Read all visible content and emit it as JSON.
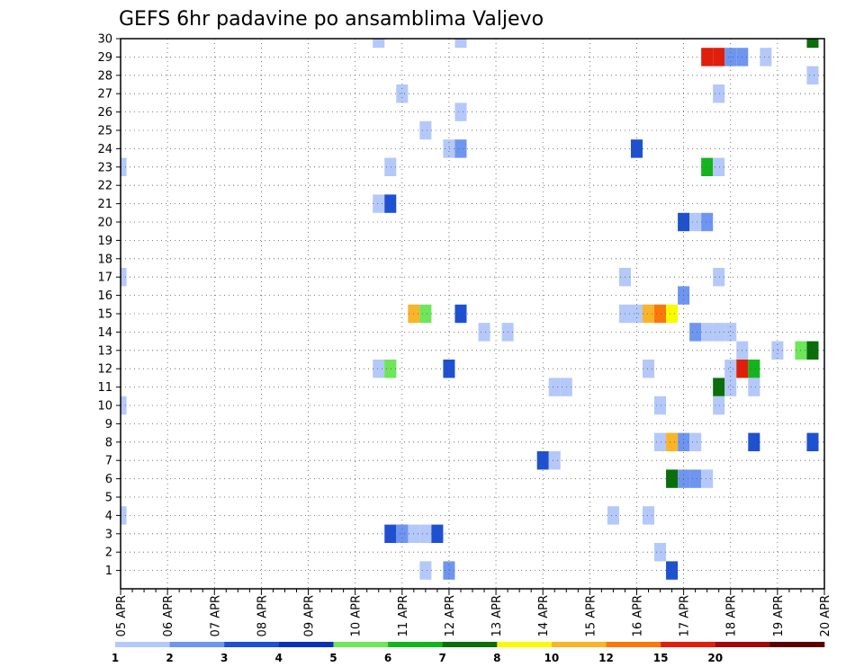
{
  "chart_data": {
    "type": "heatmap",
    "title": "GEFS 6hr padavine po ansamblima Valjevo",
    "xlabel": "",
    "ylabel": "",
    "x_tick_labels": [
      "05 APR",
      "06 APR",
      "07 APR",
      "08 APR",
      "09 APR",
      "10 APR",
      "11 APR",
      "12 APR",
      "13 APR",
      "14 APR",
      "15 APR",
      "16 APR",
      "17 APR",
      "18 APR",
      "19 APR",
      "20 APR"
    ],
    "y_tick_labels": [
      "1",
      "2",
      "3",
      "4",
      "5",
      "6",
      "7",
      "8",
      "9",
      "10",
      "11",
      "12",
      "13",
      "14",
      "15",
      "16",
      "17",
      "18",
      "19",
      "20",
      "21",
      "22",
      "23",
      "24",
      "25",
      "26",
      "27",
      "28",
      "29",
      "30"
    ],
    "x_unit": "6-hour step from 05 APR 00Z",
    "ylim": [
      0,
      30
    ],
    "colorbar": {
      "labels": [
        "1",
        "2",
        "3",
        "4",
        "5",
        "6",
        "7",
        "8",
        "10",
        "12",
        "15",
        "20"
      ],
      "colors": [
        "#b4c8fa",
        "#6e96f0",
        "#1e50d2",
        "#0a32b4",
        "#6ee65a",
        "#14b41e",
        "#0a6e0a",
        "#fafa00",
        "#fab428",
        "#fa780a",
        "#e11e0a",
        "#a00a0a",
        "#5a0000"
      ]
    },
    "grid": true,
    "cells": [
      {
        "x": 22,
        "y": 30,
        "c": 0
      },
      {
        "x": 29,
        "y": 30,
        "c": 0
      },
      {
        "x": 59,
        "y": 30,
        "c": 6
      },
      {
        "x": 50,
        "y": 29,
        "c": 10
      },
      {
        "x": 51,
        "y": 29,
        "c": 10
      },
      {
        "x": 52,
        "y": 29,
        "c": 1
      },
      {
        "x": 53,
        "y": 29,
        "c": 1
      },
      {
        "x": 55,
        "y": 29,
        "c": 0
      },
      {
        "x": 59,
        "y": 28,
        "c": 0
      },
      {
        "x": 24,
        "y": 27,
        "c": 0
      },
      {
        "x": 51,
        "y": 27,
        "c": 0
      },
      {
        "x": 29,
        "y": 26,
        "c": 0
      },
      {
        "x": 26,
        "y": 25,
        "c": 0
      },
      {
        "x": 28,
        "y": 24,
        "c": 0
      },
      {
        "x": 29,
        "y": 24,
        "c": 1
      },
      {
        "x": 44,
        "y": 24,
        "c": 2
      },
      {
        "x": 0,
        "y": 23,
        "c": 0
      },
      {
        "x": 23,
        "y": 23,
        "c": 0
      },
      {
        "x": 50,
        "y": 23,
        "c": 5
      },
      {
        "x": 51,
        "y": 23,
        "c": 0
      },
      {
        "x": 22,
        "y": 21,
        "c": 0
      },
      {
        "x": 23,
        "y": 21,
        "c": 2
      },
      {
        "x": 48,
        "y": 20,
        "c": 2
      },
      {
        "x": 49,
        "y": 20,
        "c": 0
      },
      {
        "x": 50,
        "y": 20,
        "c": 1
      },
      {
        "x": 0,
        "y": 17,
        "c": 0
      },
      {
        "x": 43,
        "y": 17,
        "c": 0
      },
      {
        "x": 51,
        "y": 17,
        "c": 0
      },
      {
        "x": 48,
        "y": 16,
        "c": 1
      },
      {
        "x": 25,
        "y": 15,
        "c": 8
      },
      {
        "x": 26,
        "y": 15,
        "c": 4
      },
      {
        "x": 29,
        "y": 15,
        "c": 2
      },
      {
        "x": 43,
        "y": 15,
        "c": 0
      },
      {
        "x": 44,
        "y": 15,
        "c": 0
      },
      {
        "x": 45,
        "y": 15,
        "c": 8
      },
      {
        "x": 46,
        "y": 15,
        "c": 9
      },
      {
        "x": 47,
        "y": 15,
        "c": 7
      },
      {
        "x": 31,
        "y": 14,
        "c": 0
      },
      {
        "x": 49,
        "y": 14,
        "c": 1
      },
      {
        "x": 50,
        "y": 14,
        "c": 0
      },
      {
        "x": 51,
        "y": 14,
        "c": 0
      },
      {
        "x": 52,
        "y": 14,
        "c": 0
      },
      {
        "x": 33,
        "y": 14,
        "c": 0
      },
      {
        "x": 53,
        "y": 13,
        "c": 0
      },
      {
        "x": 56,
        "y": 13,
        "c": 0
      },
      {
        "x": 58,
        "y": 13,
        "c": 4
      },
      {
        "x": 59,
        "y": 13,
        "c": 6
      },
      {
        "x": 22,
        "y": 12,
        "c": 0
      },
      {
        "x": 23,
        "y": 12,
        "c": 4
      },
      {
        "x": 23,
        "y": 12,
        "c": 4
      },
      {
        "x": 28,
        "y": 12,
        "c": 2
      },
      {
        "x": 45,
        "y": 12,
        "c": 0
      },
      {
        "x": 52,
        "y": 12,
        "c": 0
      },
      {
        "x": 53,
        "y": 12,
        "c": 10
      },
      {
        "x": 54,
        "y": 12,
        "c": 5
      },
      {
        "x": 37,
        "y": 11,
        "c": 0
      },
      {
        "x": 38,
        "y": 11,
        "c": 0
      },
      {
        "x": 51,
        "y": 11,
        "c": 6
      },
      {
        "x": 52,
        "y": 11,
        "c": 0
      },
      {
        "x": 54,
        "y": 11,
        "c": 0
      },
      {
        "x": 0,
        "y": 10,
        "c": 0
      },
      {
        "x": 46,
        "y": 10,
        "c": 0
      },
      {
        "x": 51,
        "y": 10,
        "c": 0
      },
      {
        "x": 46,
        "y": 8,
        "c": 0
      },
      {
        "x": 47,
        "y": 8,
        "c": 8
      },
      {
        "x": 48,
        "y": 8,
        "c": 1
      },
      {
        "x": 49,
        "y": 8,
        "c": 0
      },
      {
        "x": 54,
        "y": 8,
        "c": 2
      },
      {
        "x": 59,
        "y": 8,
        "c": 2
      },
      {
        "x": 36,
        "y": 7,
        "c": 2
      },
      {
        "x": 37,
        "y": 7,
        "c": 0
      },
      {
        "x": 47,
        "y": 6,
        "c": 6
      },
      {
        "x": 48,
        "y": 6,
        "c": 1
      },
      {
        "x": 49,
        "y": 6,
        "c": 1
      },
      {
        "x": 50,
        "y": 6,
        "c": 0
      },
      {
        "x": 0,
        "y": 4,
        "c": 0
      },
      {
        "x": 42,
        "y": 4,
        "c": 0
      },
      {
        "x": 45,
        "y": 4,
        "c": 0
      },
      {
        "x": 23,
        "y": 3,
        "c": 2
      },
      {
        "x": 24,
        "y": 3,
        "c": 1
      },
      {
        "x": 24,
        "y": 3,
        "c": 1
      },
      {
        "x": 24,
        "y": 3,
        "c": 1
      },
      {
        "x": 25,
        "y": 3,
        "c": 0
      },
      {
        "x": 26,
        "y": 3,
        "c": 0
      },
      {
        "x": 27,
        "y": 3,
        "c": 2
      },
      {
        "x": 46,
        "y": 2,
        "c": 0
      },
      {
        "x": 26,
        "y": 1,
        "c": 0
      },
      {
        "x": 28,
        "y": 1,
        "c": 1
      },
      {
        "x": 47,
        "y": 1,
        "c": 2
      }
    ]
  }
}
